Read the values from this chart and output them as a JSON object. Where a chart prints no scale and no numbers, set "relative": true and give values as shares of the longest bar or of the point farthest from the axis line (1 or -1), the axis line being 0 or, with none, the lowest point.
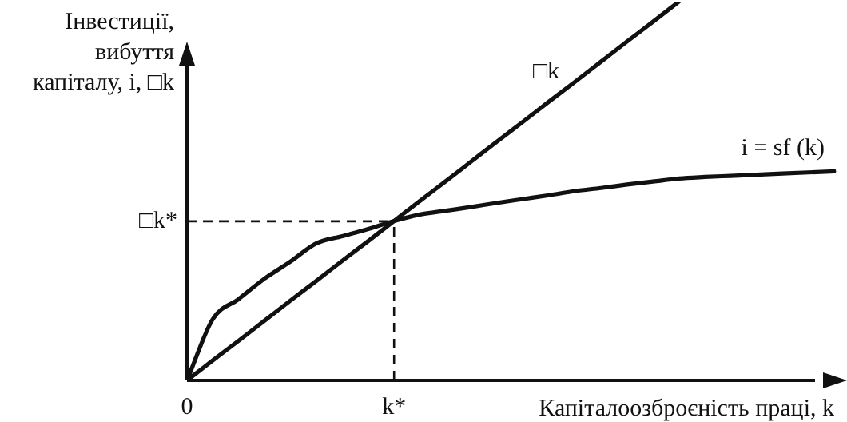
{
  "chart_data": {
    "type": "line",
    "relative": true,
    "xlabel": "Капіталоозброєність праці, k",
    "ylabel": "Інвестиції,\nвибуття\nкапіталу, i, □k",
    "categories": [
      "0",
      null,
      null,
      null,
      null,
      null,
      null,
      null,
      "k*",
      null,
      null,
      null,
      null,
      null,
      null,
      null,
      null,
      null,
      null,
      null,
      null,
      null,
      null,
      null,
      null,
      null
    ],
    "series": [
      {
        "name": "□k",
        "color": "#111111",
        "values": [
          0,
          0.053,
          0.105,
          0.158,
          0.211,
          0.263,
          0.316,
          0.368,
          0.421,
          0.474,
          0.526,
          0.579,
          0.632,
          0.684,
          0.737,
          0.789,
          0.842,
          0.895,
          0.947,
          1,
          null,
          null,
          null,
          null,
          null,
          null
        ]
      },
      {
        "name": "i = sf (k)",
        "color": "#111111",
        "values": [
          0,
          0.162,
          0.215,
          0.269,
          0.314,
          0.362,
          0.381,
          0.4,
          0.421,
          0.438,
          0.448,
          0.458,
          0.469,
          0.479,
          0.489,
          0.5,
          0.508,
          0.517,
          0.525,
          0.533,
          0.537,
          0.54,
          0.543,
          0.546,
          0.549,
          0.552
        ]
      }
    ],
    "ref_lines": [
      {
        "axis": "x",
        "value": "k*",
        "line_style": "dashed"
      },
      {
        "axis": "y",
        "value": 0.42,
        "label": "□k*",
        "line_style": "dashed"
      }
    ],
    "grid": false,
    "legend": false,
    "marker": "none",
    "line_style": "solid"
  }
}
